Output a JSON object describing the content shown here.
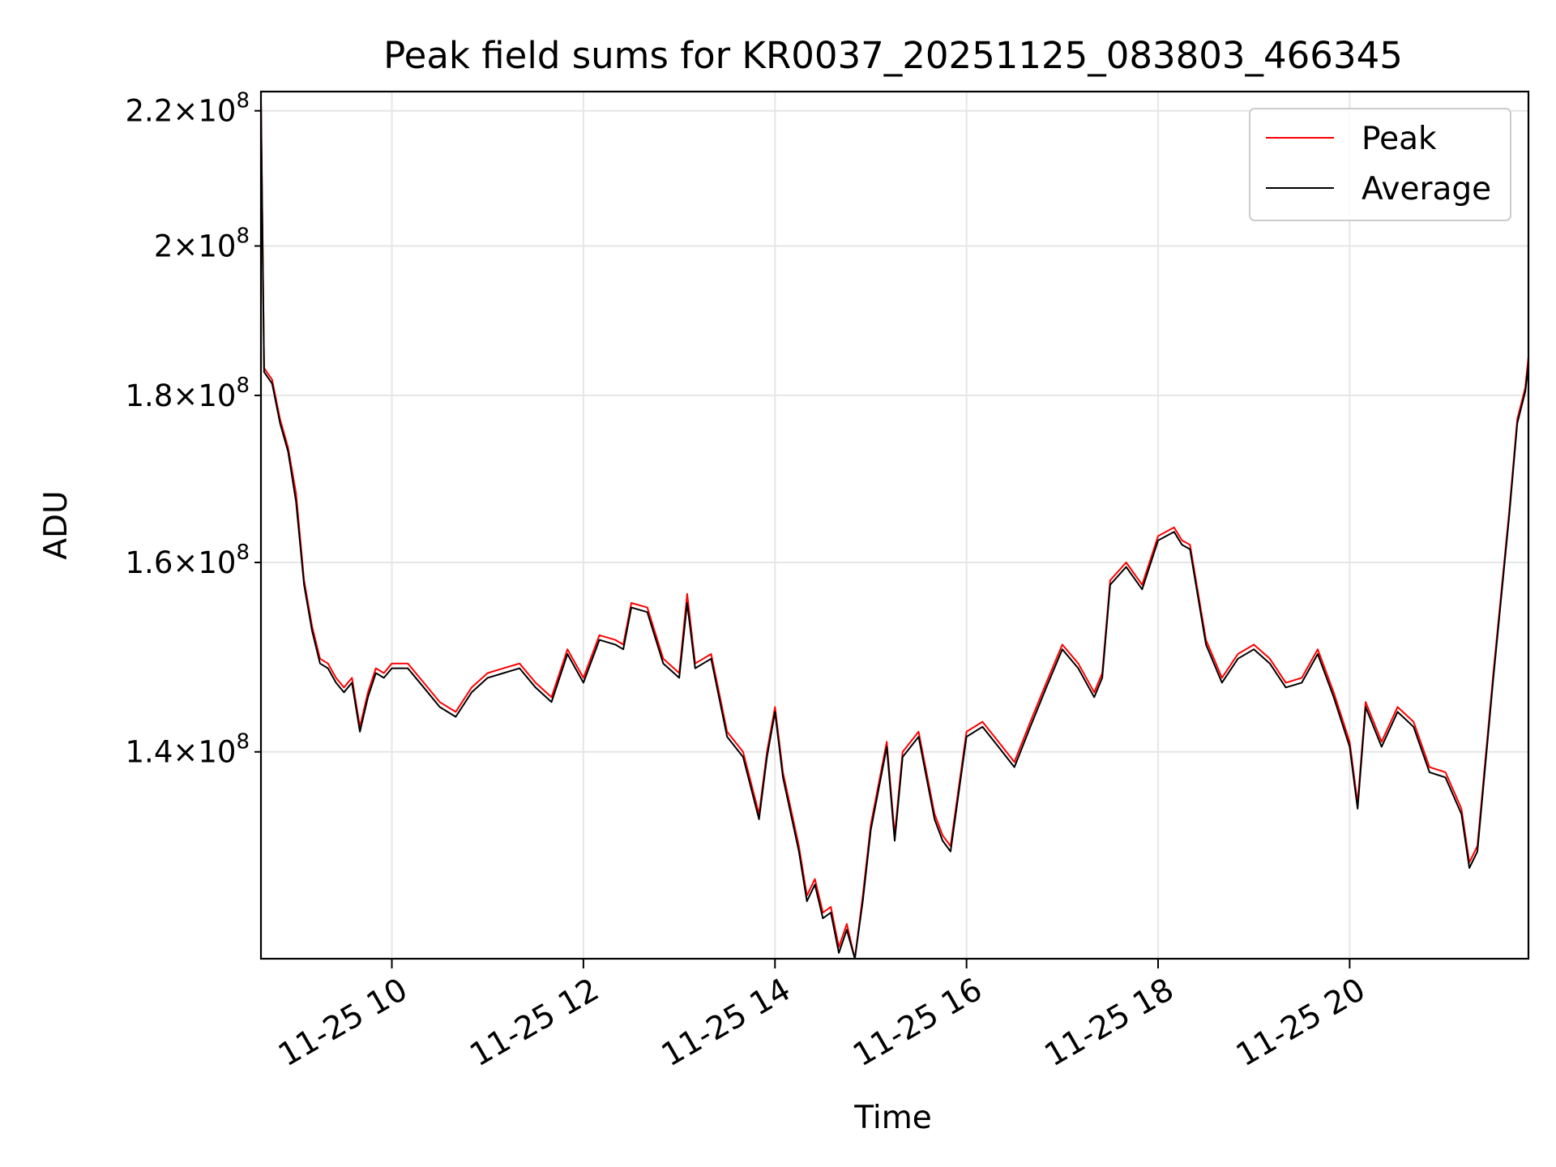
{
  "chart_data": {
    "type": "line",
    "title": "Peak field sums for KR0037_20251125_083803_466345",
    "xlabel": "Time",
    "ylabel": "ADU",
    "y_scale": "log",
    "grid": true,
    "legend_position": "top-right",
    "xlim": [
      "2025-11-25 08:38",
      "2025-11-25 21:52"
    ],
    "ylim": [
      121000000,
      223000000
    ],
    "x_ticks": [
      {
        "value": "2025-11-25 10:00",
        "label": "11-25 10"
      },
      {
        "value": "2025-11-25 12:00",
        "label": "11-25 12"
      },
      {
        "value": "2025-11-25 14:00",
        "label": "11-25 14"
      },
      {
        "value": "2025-11-25 16:00",
        "label": "11-25 16"
      },
      {
        "value": "2025-11-25 18:00",
        "label": "11-25 18"
      },
      {
        "value": "2025-11-25 20:00",
        "label": "11-25 20"
      }
    ],
    "y_ticks": [
      {
        "value": 140000000,
        "mantissa": "1.4",
        "exponent": "8"
      },
      {
        "value": 160000000,
        "mantissa": "1.6",
        "exponent": "8"
      },
      {
        "value": 180000000,
        "mantissa": "1.8",
        "exponent": "8"
      },
      {
        "value": 200000000,
        "mantissa": "2",
        "exponent": "8"
      },
      {
        "value": 220000000,
        "mantissa": "2.2",
        "exponent": "8"
      }
    ],
    "series": [
      {
        "name": "Peak",
        "color": "#ff0000",
        "x": [
          "2025-11-25 08:38",
          "2025-11-25 08:40",
          "2025-11-25 08:45",
          "2025-11-25 08:50",
          "2025-11-25 08:55",
          "2025-11-25 09:00",
          "2025-11-25 09:05",
          "2025-11-25 09:10",
          "2025-11-25 09:15",
          "2025-11-25 09:20",
          "2025-11-25 09:25",
          "2025-11-25 09:30",
          "2025-11-25 09:35",
          "2025-11-25 09:40",
          "2025-11-25 09:45",
          "2025-11-25 09:50",
          "2025-11-25 09:55",
          "2025-11-25 10:00",
          "2025-11-25 10:10",
          "2025-11-25 10:20",
          "2025-11-25 10:30",
          "2025-11-25 10:40",
          "2025-11-25 10:50",
          "2025-11-25 11:00",
          "2025-11-25 11:10",
          "2025-11-25 11:20",
          "2025-11-25 11:30",
          "2025-11-25 11:40",
          "2025-11-25 11:50",
          "2025-11-25 12:00",
          "2025-11-25 12:10",
          "2025-11-25 12:20",
          "2025-11-25 12:25",
          "2025-11-25 12:30",
          "2025-11-25 12:40",
          "2025-11-25 12:50",
          "2025-11-25 13:00",
          "2025-11-25 13:05",
          "2025-11-25 13:10",
          "2025-11-25 13:20",
          "2025-11-25 13:30",
          "2025-11-25 13:40",
          "2025-11-25 13:50",
          "2025-11-25 13:55",
          "2025-11-25 14:00",
          "2025-11-25 14:05",
          "2025-11-25 14:15",
          "2025-11-25 14:20",
          "2025-11-25 14:25",
          "2025-11-25 14:30",
          "2025-11-25 14:35",
          "2025-11-25 14:40",
          "2025-11-25 14:45",
          "2025-11-25 14:50",
          "2025-11-25 14:55",
          "2025-11-25 15:00",
          "2025-11-25 15:10",
          "2025-11-25 15:15",
          "2025-11-25 15:20",
          "2025-11-25 15:30",
          "2025-11-25 15:40",
          "2025-11-25 15:45",
          "2025-11-25 15:50",
          "2025-11-25 16:00",
          "2025-11-25 16:10",
          "2025-11-25 16:20",
          "2025-11-25 16:30",
          "2025-11-25 16:40",
          "2025-11-25 16:50",
          "2025-11-25 17:00",
          "2025-11-25 17:10",
          "2025-11-25 17:20",
          "2025-11-25 17:25",
          "2025-11-25 17:30",
          "2025-11-25 17:40",
          "2025-11-25 17:50",
          "2025-11-25 18:00",
          "2025-11-25 18:10",
          "2025-11-25 18:15",
          "2025-11-25 18:20",
          "2025-11-25 18:30",
          "2025-11-25 18:40",
          "2025-11-25 18:50",
          "2025-11-25 19:00",
          "2025-11-25 19:10",
          "2025-11-25 19:20",
          "2025-11-25 19:30",
          "2025-11-25 19:40",
          "2025-11-25 19:50",
          "2025-11-25 20:00",
          "2025-11-25 20:05",
          "2025-11-25 20:10",
          "2025-11-25 20:20",
          "2025-11-25 20:30",
          "2025-11-25 20:40",
          "2025-11-25 20:50",
          "2025-11-25 21:00",
          "2025-11-25 21:10",
          "2025-11-25 21:15",
          "2025-11-25 21:20",
          "2025-11-25 21:30",
          "2025-11-25 21:40",
          "2025-11-25 21:45",
          "2025-11-25 21:50",
          "2025-11-25 21:52"
        ],
        "values": [
          222000000,
          183500000,
          182000000,
          177000000,
          173500000,
          168000000,
          158000000,
          153000000,
          149500000,
          149000000,
          147500000,
          146500000,
          147500000,
          142500000,
          146000000,
          148500000,
          148000000,
          149000000,
          149000000,
          147000000,
          145000000,
          144000000,
          146500000,
          148000000,
          148500000,
          149000000,
          147000000,
          145500000,
          150500000,
          147500000,
          152000000,
          151500000,
          151000000,
          155500000,
          155000000,
          149500000,
          148000000,
          156500000,
          149000000,
          150000000,
          142000000,
          140000000,
          134000000,
          140000000,
          144500000,
          138000000,
          131000000,
          126500000,
          128000000,
          125000000,
          125500000,
          122000000,
          124000000,
          121000000,
          126500000,
          133000000,
          141000000,
          132000000,
          140000000,
          142000000,
          134000000,
          132000000,
          131000000,
          142000000,
          143000000,
          141000000,
          139000000,
          143000000,
          147000000,
          151000000,
          149000000,
          146000000,
          148000000,
          158000000,
          160000000,
          157500000,
          163000000,
          164000000,
          162500000,
          162000000,
          151500000,
          147500000,
          150000000,
          151000000,
          149500000,
          147000000,
          147500000,
          150500000,
          146000000,
          141000000,
          135000000,
          145000000,
          141000000,
          144500000,
          143000000,
          138500000,
          138000000,
          134500000,
          129500000,
          131000000,
          148000000,
          166000000,
          177000000,
          181000000,
          185000000
        ]
      },
      {
        "name": "Average",
        "color": "#000000",
        "x": [
          "2025-11-25 08:38",
          "2025-11-25 08:40",
          "2025-11-25 08:45",
          "2025-11-25 08:50",
          "2025-11-25 08:55",
          "2025-11-25 09:00",
          "2025-11-25 09:05",
          "2025-11-25 09:10",
          "2025-11-25 09:15",
          "2025-11-25 09:20",
          "2025-11-25 09:25",
          "2025-11-25 09:30",
          "2025-11-25 09:35",
          "2025-11-25 09:40",
          "2025-11-25 09:45",
          "2025-11-25 09:50",
          "2025-11-25 09:55",
          "2025-11-25 10:00",
          "2025-11-25 10:10",
          "2025-11-25 10:20",
          "2025-11-25 10:30",
          "2025-11-25 10:40",
          "2025-11-25 10:50",
          "2025-11-25 11:00",
          "2025-11-25 11:10",
          "2025-11-25 11:20",
          "2025-11-25 11:30",
          "2025-11-25 11:40",
          "2025-11-25 11:50",
          "2025-11-25 12:00",
          "2025-11-25 12:10",
          "2025-11-25 12:20",
          "2025-11-25 12:25",
          "2025-11-25 12:30",
          "2025-11-25 12:40",
          "2025-11-25 12:50",
          "2025-11-25 13:00",
          "2025-11-25 13:05",
          "2025-11-25 13:10",
          "2025-11-25 13:20",
          "2025-11-25 13:30",
          "2025-11-25 13:40",
          "2025-11-25 13:50",
          "2025-11-25 13:55",
          "2025-11-25 14:00",
          "2025-11-25 14:05",
          "2025-11-25 14:15",
          "2025-11-25 14:20",
          "2025-11-25 14:25",
          "2025-11-25 14:30",
          "2025-11-25 14:35",
          "2025-11-25 14:40",
          "2025-11-25 14:45",
          "2025-11-25 14:50",
          "2025-11-25 14:55",
          "2025-11-25 15:00",
          "2025-11-25 15:10",
          "2025-11-25 15:15",
          "2025-11-25 15:20",
          "2025-11-25 15:30",
          "2025-11-25 15:40",
          "2025-11-25 15:45",
          "2025-11-25 15:50",
          "2025-11-25 16:00",
          "2025-11-25 16:10",
          "2025-11-25 16:20",
          "2025-11-25 16:30",
          "2025-11-25 16:40",
          "2025-11-25 16:50",
          "2025-11-25 17:00",
          "2025-11-25 17:10",
          "2025-11-25 17:20",
          "2025-11-25 17:25",
          "2025-11-25 17:30",
          "2025-11-25 17:40",
          "2025-11-25 17:50",
          "2025-11-25 18:00",
          "2025-11-25 18:10",
          "2025-11-25 18:15",
          "2025-11-25 18:20",
          "2025-11-25 18:30",
          "2025-11-25 18:40",
          "2025-11-25 18:50",
          "2025-11-25 19:00",
          "2025-11-25 19:10",
          "2025-11-25 19:20",
          "2025-11-25 19:30",
          "2025-11-25 19:40",
          "2025-11-25 19:50",
          "2025-11-25 20:00",
          "2025-11-25 20:05",
          "2025-11-25 20:10",
          "2025-11-25 20:20",
          "2025-11-25 20:30",
          "2025-11-25 20:40",
          "2025-11-25 20:50",
          "2025-11-25 21:00",
          "2025-11-25 21:10",
          "2025-11-25 21:15",
          "2025-11-25 21:20",
          "2025-11-25 21:30",
          "2025-11-25 21:40",
          "2025-11-25 21:45",
          "2025-11-25 21:50",
          "2025-11-25 21:52"
        ],
        "values": [
          221000000,
          183000000,
          181500000,
          176500000,
          173000000,
          167000000,
          157500000,
          152500000,
          149000000,
          148500000,
          147000000,
          146000000,
          147000000,
          142000000,
          145500000,
          148000000,
          147500000,
          148500000,
          148500000,
          146500000,
          144500000,
          143500000,
          146000000,
          147500000,
          148000000,
          148500000,
          146500000,
          145000000,
          150000000,
          147000000,
          151500000,
          151000000,
          150500000,
          155000000,
          154500000,
          149000000,
          147500000,
          155500000,
          148500000,
          149500000,
          141500000,
          139500000,
          133500000,
          139500000,
          144000000,
          137500000,
          130500000,
          126000000,
          127500000,
          124500000,
          125000000,
          121500000,
          123500000,
          121000000,
          126000000,
          132500000,
          140500000,
          131500000,
          139500000,
          141500000,
          133500000,
          131500000,
          130500000,
          141500000,
          142500000,
          140500000,
          138500000,
          142500000,
          146500000,
          150500000,
          148500000,
          145500000,
          147500000,
          157500000,
          159500000,
          157000000,
          162500000,
          163500000,
          162000000,
          161500000,
          151000000,
          147000000,
          149500000,
          150500000,
          149000000,
          146500000,
          147000000,
          150000000,
          145500000,
          140500000,
          134500000,
          144500000,
          140500000,
          144000000,
          142500000,
          138000000,
          137500000,
          134000000,
          129000000,
          130500000,
          147500000,
          165500000,
          176500000,
          180500000,
          184000000
        ]
      }
    ]
  }
}
